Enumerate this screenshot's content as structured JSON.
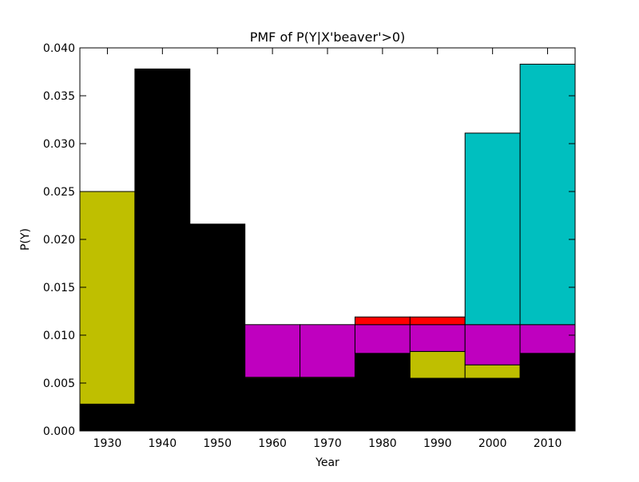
{
  "chart_data": {
    "type": "bar",
    "stacked": true,
    "title": "PMF of P(Y|X'beaver'>0)",
    "xlabel": "Year",
    "ylabel": "P(Y)",
    "categories": [
      "1930",
      "1940",
      "1950",
      "1960",
      "1970",
      "1980",
      "1990",
      "2000",
      "2010"
    ],
    "x": [
      1930,
      1940,
      1950,
      1960,
      1970,
      1980,
      1990,
      2000,
      2010
    ],
    "bin_width": 10,
    "xlim": [
      1925,
      2015
    ],
    "ylim": [
      0,
      0.04
    ],
    "yticks": [
      "0.000",
      "0.005",
      "0.010",
      "0.015",
      "0.020",
      "0.025",
      "0.030",
      "0.035",
      "0.040"
    ],
    "grid": false,
    "colors": {
      "black": "#000000",
      "olive": "#bfbf00",
      "magenta": "#bf00bf",
      "red": "#ff0000",
      "cyan": "#00bfbf"
    },
    "series": [
      {
        "color": "#000000",
        "values": [
          0.0028,
          0.0378,
          0.0216,
          0.0055,
          0.0055,
          0.0081,
          0.0055,
          0.0055,
          0.0081
        ]
      },
      {
        "color": "#bfbf00",
        "values": [
          0.0222,
          0,
          0,
          0.0001,
          0.0001,
          0,
          0.0028,
          0.0014,
          0
        ]
      },
      {
        "color": "#bf00bf",
        "values": [
          0,
          0,
          0,
          0.0055,
          0.0055,
          0.003,
          0.0028,
          0.0042,
          0.003
        ]
      },
      {
        "color": "#ff0000",
        "values": [
          0,
          0,
          0,
          0,
          0,
          0.0008,
          0.0008,
          0,
          0
        ]
      },
      {
        "color": "#00bfbf",
        "values": [
          0,
          0,
          0,
          0,
          0,
          0,
          0,
          0.02,
          0.0272
        ]
      }
    ]
  }
}
